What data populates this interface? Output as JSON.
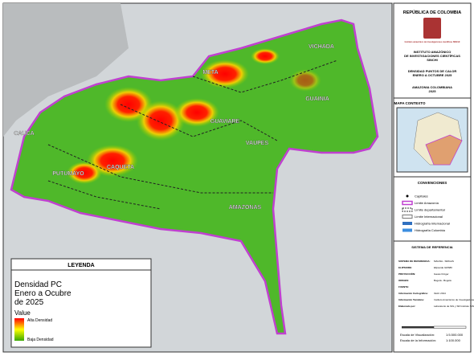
{
  "panel": {
    "country": "REPÚBLICA DE COLOMBIA",
    "logo_text": "Instituto amazónico de investigaciones científicas SINCHI",
    "institute": [
      "INSTITUTO AMAZÓNICO",
      "DE INVESTIGACIONES CIENTÍFICAS",
      "SINCHI"
    ],
    "map_title": [
      "DENSIDAD PUNTOS DE CALOR",
      "ENERO A OCTUBRE 2025"
    ],
    "region": [
      "AMAZONIA COLOMBIANA",
      "2025"
    ],
    "context_title": "MAPA CONTEXTO",
    "conventions_title": "CONVENCIONES",
    "conventions": [
      "Capitales",
      "Límite Amazonía",
      "Límite departamental",
      "Límite Internacional",
      "Hidrografía Internacional",
      "Hidrografía Colombia"
    ],
    "reference_title": "SISTEMA DE REFERENCIA",
    "reference": [
      [
        "SISTEMA DE REFERENCIA:",
        "MAGNA - SIRGAS"
      ],
      [
        "ELIPSOIDE:",
        "Elipsoide GRS80"
      ],
      [
        "PROYECCIÓN:",
        "Gauss Krüger"
      ],
      [
        "ORIGEN:",
        "Bogotá - Bogotá"
      ],
      [
        "FUENTE:",
        ""
      ],
      [
        "Información Cartográfica:",
        "IGAC 2014"
      ],
      [
        "Información Temática:",
        "Instituto Amazónico de Investigaciones Científicas Sinchi"
      ],
      [
        "Elaborado por:",
        "Laboratorio de SIG y SR Instituto SINCHI"
      ]
    ],
    "scale": [
      [
        "Escala de Visualización:",
        "1:5.500.000"
      ],
      [
        "Escala de la Información:",
        "1:100.000"
      ]
    ]
  },
  "legend": {
    "title": "LEYENDA",
    "layer": [
      "Densidad PC",
      "Enero a Ocubre",
      "de 2025"
    ],
    "value": "Value",
    "high": "Alta Densidad",
    "low": "Baja Densidad"
  },
  "departments": [
    "VICHADA",
    "META",
    "GUAINIA",
    "GUAVIARE",
    "CAQUETA",
    "PUTUMAYO",
    "CAUCA",
    "VAUPES",
    "AMAZONAS"
  ]
}
